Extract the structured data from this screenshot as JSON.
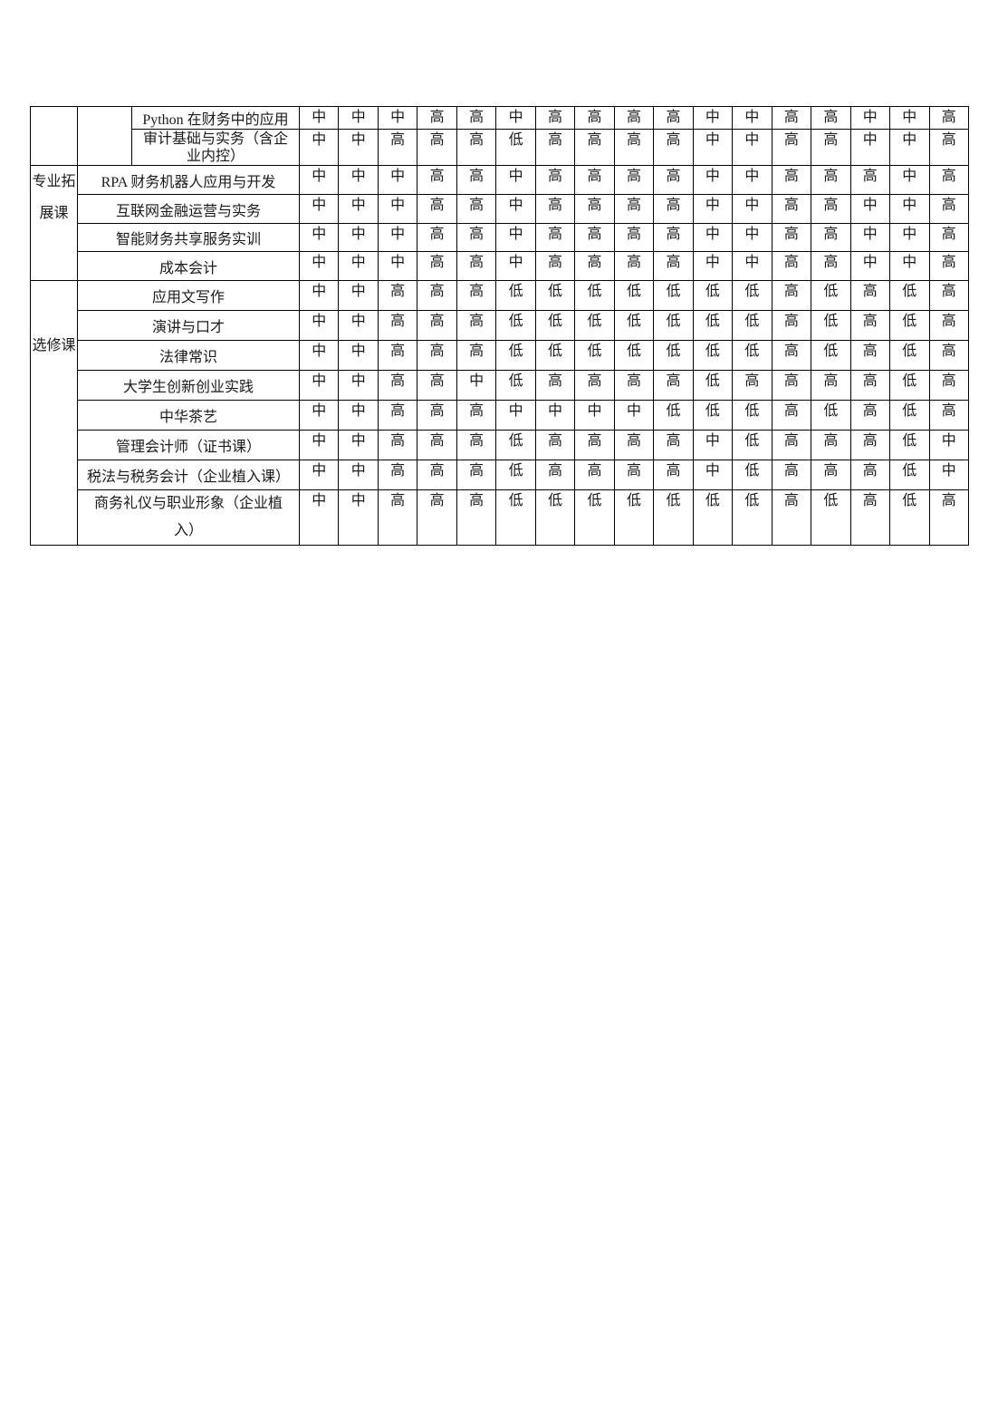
{
  "page": {
    "background": "#ffffff"
  },
  "table": {
    "border_color": "#000000",
    "text_color": "#1b1b1b",
    "sections": [
      {
        "category": "",
        "rows": [
          {
            "course": "Python 在财务中的应用",
            "ratings": [
              "中",
              "中",
              "中",
              "高",
              "高",
              "中",
              "高",
              "高",
              "高",
              "高",
              "中",
              "中",
              "高",
              "高",
              "中",
              "中",
              "高"
            ]
          },
          {
            "course": "审计基础与实务（含企业内控）",
            "ratings": [
              "中",
              "中",
              "高",
              "高",
              "高",
              "低",
              "高",
              "高",
              "高",
              "高",
              "中",
              "中",
              "高",
              "高",
              "中",
              "中",
              "高"
            ]
          }
        ]
      },
      {
        "category": "专业拓展课",
        "rows": [
          {
            "course": "RPA 财务机器人应用与开发",
            "ratings": [
              "中",
              "中",
              "中",
              "高",
              "高",
              "中",
              "高",
              "高",
              "高",
              "高",
              "中",
              "中",
              "高",
              "高",
              "高",
              "中",
              "高"
            ]
          },
          {
            "course": "互联网金融运营与实务",
            "ratings": [
              "中",
              "中",
              "中",
              "高",
              "高",
              "中",
              "高",
              "高",
              "高",
              "高",
              "中",
              "中",
              "高",
              "高",
              "中",
              "中",
              "高"
            ]
          },
          {
            "course": "智能财务共享服务实训",
            "ratings": [
              "中",
              "中",
              "中",
              "高",
              "高",
              "中",
              "高",
              "高",
              "高",
              "高",
              "中",
              "中",
              "高",
              "高",
              "中",
              "中",
              "高"
            ]
          },
          {
            "course": "成本会计",
            "ratings": [
              "中",
              "中",
              "中",
              "高",
              "高",
              "中",
              "高",
              "高",
              "高",
              "高",
              "中",
              "中",
              "高",
              "高",
              "中",
              "中",
              "高"
            ]
          }
        ]
      },
      {
        "category": "选修课",
        "rows": [
          {
            "course": "应用文写作",
            "ratings": [
              "中",
              "中",
              "高",
              "高",
              "高",
              "低",
              "低",
              "低",
              "低",
              "低",
              "低",
              "低",
              "高",
              "低",
              "高",
              "低",
              "高"
            ]
          },
          {
            "course": "演讲与口才",
            "ratings": [
              "中",
              "中",
              "高",
              "高",
              "高",
              "低",
              "低",
              "低",
              "低",
              "低",
              "低",
              "低",
              "高",
              "低",
              "高",
              "低",
              "高"
            ]
          },
          {
            "course": "法律常识",
            "ratings": [
              "中",
              "中",
              "高",
              "高",
              "高",
              "低",
              "低",
              "低",
              "低",
              "低",
              "低",
              "低",
              "高",
              "低",
              "高",
              "低",
              "高"
            ]
          },
          {
            "course": "大学生创新创业实践",
            "ratings": [
              "中",
              "中",
              "高",
              "高",
              "中",
              "低",
              "高",
              "高",
              "高",
              "高",
              "低",
              "高",
              "高",
              "高",
              "高",
              "低",
              "高"
            ]
          },
          {
            "course": "中华茶艺",
            "ratings": [
              "中",
              "中",
              "高",
              "高",
              "高",
              "中",
              "中",
              "中",
              "中",
              "低",
              "低",
              "低",
              "高",
              "低",
              "高",
              "低",
              "高"
            ]
          },
          {
            "course": "管理会计师（证书课）",
            "ratings": [
              "中",
              "中",
              "高",
              "高",
              "高",
              "低",
              "高",
              "高",
              "高",
              "高",
              "中",
              "低",
              "高",
              "高",
              "高",
              "低",
              "中"
            ]
          },
          {
            "course": "税法与税务会计（企业植入课）",
            "ratings": [
              "中",
              "中",
              "高",
              "高",
              "高",
              "低",
              "高",
              "高",
              "高",
              "高",
              "中",
              "低",
              "高",
              "高",
              "高",
              "低",
              "中"
            ]
          },
          {
            "course": "商务礼仪与职业形象（企业植入）",
            "ratings": [
              "中",
              "中",
              "高",
              "高",
              "高",
              "低",
              "低",
              "低",
              "低",
              "低",
              "低",
              "低",
              "高",
              "低",
              "高",
              "低",
              "高"
            ]
          }
        ]
      }
    ]
  }
}
